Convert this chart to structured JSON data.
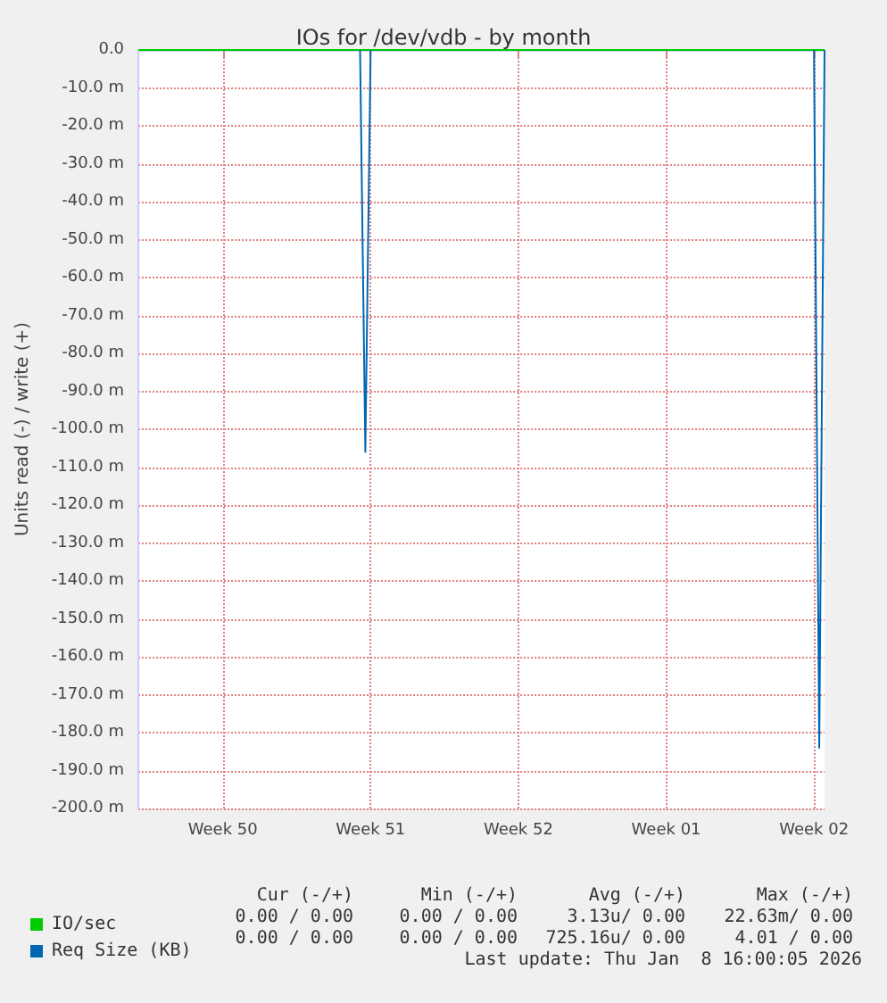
{
  "chart_data": {
    "type": "line",
    "title": "IOs for /dev/vdb - by month",
    "ylabel": "Units read (-) / write (+)",
    "categories": [
      null,
      null,
      null,
      null,
      null,
      null,
      null,
      null,
      null,
      null,
      null,
      null,
      null,
      null,
      null,
      null,
      "Week 50",
      null,
      null,
      null,
      null,
      null,
      null,
      null,
      null,
      null,
      null,
      null,
      null,
      null,
      null,
      null,
      null,
      null,
      null,
      null,
      null,
      null,
      null,
      null,
      null,
      null,
      null,
      null,
      "Week 51",
      null,
      null,
      null,
      null,
      null,
      null,
      null,
      null,
      null,
      null,
      null,
      null,
      null,
      null,
      null,
      null,
      null,
      null,
      null,
      null,
      null,
      null,
      null,
      null,
      null,
      null,
      null,
      "Week 52",
      null,
      null,
      null,
      null,
      null,
      null,
      null,
      null,
      null,
      null,
      null,
      null,
      null,
      null,
      null,
      null,
      null,
      null,
      null,
      null,
      null,
      null,
      null,
      null,
      null,
      null,
      null,
      "Week 01",
      null,
      null,
      null,
      null,
      null,
      null,
      null,
      null,
      null,
      null,
      null,
      null,
      null,
      null,
      null,
      null,
      null,
      null,
      null,
      null,
      null,
      null,
      null,
      null,
      null,
      null,
      null,
      "Week 02",
      null,
      null
    ],
    "ylim": [
      -200,
      0
    ],
    "yticks": [
      {
        "value": 0,
        "label": "0.0"
      },
      {
        "value": -10,
        "label": "-10.0 m"
      },
      {
        "value": -20,
        "label": "-20.0 m"
      },
      {
        "value": -30,
        "label": "-30.0 m"
      },
      {
        "value": -40,
        "label": "-40.0 m"
      },
      {
        "value": -50,
        "label": "-50.0 m"
      },
      {
        "value": -60,
        "label": "-60.0 m"
      },
      {
        "value": -70,
        "label": "-70.0 m"
      },
      {
        "value": -80,
        "label": "-80.0 m"
      },
      {
        "value": -90,
        "label": "-90.0 m"
      },
      {
        "value": -100,
        "label": "-100.0 m"
      },
      {
        "value": -110,
        "label": "-110.0 m"
      },
      {
        "value": -120,
        "label": "-120.0 m"
      },
      {
        "value": -130,
        "label": "-130.0 m"
      },
      {
        "value": -140,
        "label": "-140.0 m"
      },
      {
        "value": -150,
        "label": "-150.0 m"
      },
      {
        "value": -160,
        "label": "-160.0 m"
      },
      {
        "value": -170,
        "label": "-170.0 m"
      },
      {
        "value": -180,
        "label": "-180.0 m"
      },
      {
        "value": -190,
        "label": "-190.0 m"
      },
      {
        "value": -200,
        "label": "-200.0 m"
      }
    ],
    "series": [
      {
        "name": "IO/sec",
        "color": "#00cc00",
        "values": [
          0,
          0,
          0,
          0,
          0,
          0,
          0,
          0,
          0,
          0,
          0,
          0,
          0,
          0,
          0,
          0,
          0,
          0,
          0,
          0,
          0,
          0,
          0,
          0,
          0,
          0,
          0,
          0,
          0,
          0,
          0,
          0,
          0,
          0,
          0,
          0,
          0,
          0,
          0,
          0,
          0,
          0,
          0,
          0,
          0,
          0,
          0,
          0,
          0,
          0,
          0,
          0,
          0,
          0,
          0,
          0,
          0,
          0,
          0,
          0,
          0,
          0,
          0,
          0,
          0,
          0,
          0,
          0,
          0,
          0,
          0,
          0,
          0,
          0,
          0,
          0,
          0,
          0,
          0,
          0,
          0,
          0,
          0,
          0,
          0,
          0,
          0,
          0,
          0,
          0,
          0,
          0,
          0,
          0,
          0,
          0,
          0,
          0,
          0,
          0,
          0,
          0,
          0,
          0,
          0,
          0,
          0,
          0,
          0,
          0,
          0,
          0,
          0,
          0,
          0,
          0,
          0,
          0,
          0,
          0,
          0,
          0,
          0,
          0,
          0,
          0,
          0,
          0,
          0,
          0,
          0
        ]
      },
      {
        "name": "Req Size (KB)",
        "color": "#0066b3",
        "values": [
          null,
          null,
          null,
          null,
          null,
          null,
          null,
          null,
          null,
          null,
          null,
          null,
          null,
          null,
          null,
          null,
          null,
          null,
          null,
          null,
          null,
          null,
          null,
          null,
          null,
          null,
          null,
          null,
          null,
          null,
          null,
          null,
          null,
          null,
          null,
          null,
          null,
          null,
          null,
          null,
          null,
          null,
          0,
          -106,
          0,
          null,
          null,
          null,
          null,
          null,
          null,
          null,
          null,
          null,
          null,
          null,
          null,
          null,
          null,
          null,
          null,
          null,
          null,
          null,
          null,
          null,
          null,
          null,
          null,
          null,
          null,
          null,
          null,
          null,
          null,
          null,
          null,
          null,
          null,
          null,
          null,
          null,
          null,
          null,
          null,
          null,
          null,
          null,
          null,
          null,
          null,
          null,
          null,
          null,
          null,
          null,
          null,
          null,
          null,
          null,
          null,
          null,
          null,
          null,
          null,
          null,
          null,
          null,
          null,
          null,
          null,
          null,
          null,
          null,
          null,
          null,
          null,
          null,
          null,
          null,
          null,
          null,
          null,
          null,
          null,
          null,
          null,
          null,
          0,
          -184,
          0
        ]
      }
    ],
    "grid": true,
    "legend": "bottom left",
    "marker": "none",
    "line_style": "solid",
    "annotations": [
      "Cur (-/+)",
      "Min (-/+)",
      "Avg (-/+)",
      "Max (-/+)",
      "0.00 / 0.00",
      "0.00 / 0.00",
      "3.13u/ 0.00",
      "22.63m/ 0.00",
      "0.00 / 0.00",
      "0.00 / 0.00",
      "725.16u/ 0.00",
      "4.01 / 0.00",
      "Last update: Thu Jan  8 16:00:05 2026"
    ]
  }
}
